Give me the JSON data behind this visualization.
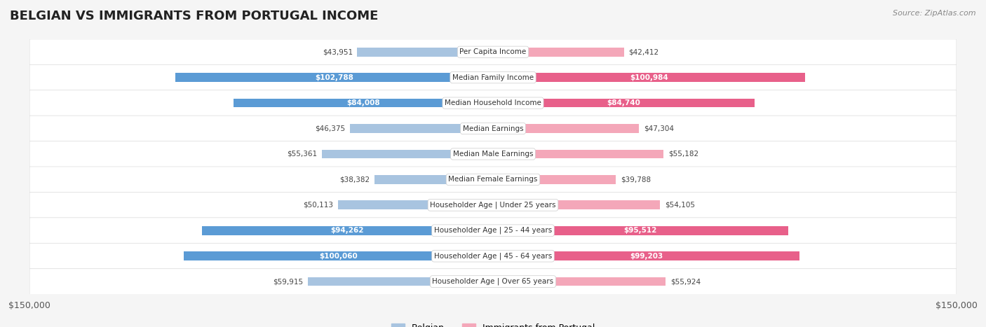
{
  "title": "BELGIAN VS IMMIGRANTS FROM PORTUGAL INCOME",
  "source": "Source: ZipAtlas.com",
  "categories": [
    "Per Capita Income",
    "Median Family Income",
    "Median Household Income",
    "Median Earnings",
    "Median Male Earnings",
    "Median Female Earnings",
    "Householder Age | Under 25 years",
    "Householder Age | 25 - 44 years",
    "Householder Age | 45 - 64 years",
    "Householder Age | Over 65 years"
  ],
  "belgian_values": [
    43951,
    102788,
    84008,
    46375,
    55361,
    38382,
    50113,
    94262,
    100060,
    59915
  ],
  "portugal_values": [
    42412,
    100984,
    84740,
    47304,
    55182,
    39788,
    54105,
    95512,
    99203,
    55924
  ],
  "belgian_labels": [
    "$43,951",
    "$102,788",
    "$84,008",
    "$46,375",
    "$55,361",
    "$38,382",
    "$50,113",
    "$94,262",
    "$100,060",
    "$59,915"
  ],
  "portugal_labels": [
    "$42,412",
    "$100,984",
    "$84,740",
    "$47,304",
    "$55,182",
    "$39,788",
    "$54,105",
    "$95,512",
    "$99,203",
    "$55,924"
  ],
  "max_value": 150000,
  "belgian_color_light": "#a8c4e0",
  "belgian_color_dark": "#5b9bd5",
  "portugal_color_light": "#f4a7b9",
  "portugal_color_dark": "#e8608a",
  "label_threshold": 80000,
  "background_color": "#f5f5f5",
  "row_bg_color": "#ffffff",
  "legend_belgian": "Belgian",
  "legend_portugal": "Immigrants from Portugal",
  "xlim": 150000
}
